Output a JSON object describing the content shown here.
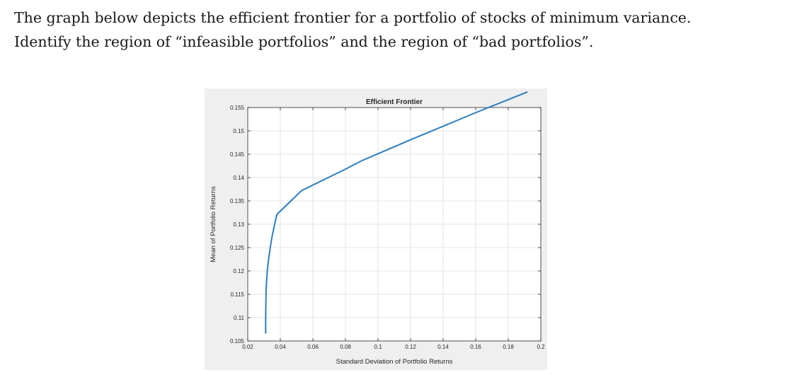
{
  "question": {
    "line1": "The graph below depicts the efficient frontier for a portfolio of stocks of minimum variance.",
    "line2": "Identify the region of “infeasible portfolios” and the region of “bad portfolios”."
  },
  "chart_data": {
    "type": "line",
    "title": "Efficient Frontier",
    "xlabel": "Standard Deviation of Portfolio Returns",
    "ylabel": "Mean of Portfolio Returns",
    "xlim": [
      0.02,
      0.2
    ],
    "ylim": [
      0.105,
      0.155
    ],
    "xticks": [
      0.02,
      0.04,
      0.06,
      0.08,
      0.1,
      0.12,
      0.14,
      0.16,
      0.18,
      0.2
    ],
    "xtick_labels": [
      "0.02",
      "0.04",
      "0.06",
      "0.08",
      "0.1",
      "0.12",
      "0.14",
      "0.16",
      "0.18",
      "0.2"
    ],
    "yticks": [
      0.105,
      0.11,
      0.115,
      0.12,
      0.125,
      0.13,
      0.135,
      0.14,
      0.145,
      0.15,
      0.155
    ],
    "ytick_labels": [
      "0.105",
      "0.11",
      "0.115",
      "0.12",
      "0.125",
      "0.13",
      "0.135",
      "0.14",
      "0.145",
      "0.15",
      "0.155"
    ],
    "grid": true,
    "series": [
      {
        "color": "#2e7ebf",
        "x": [
          0.031,
          0.031,
          0.0312,
          0.0315,
          0.032,
          0.0328,
          0.0338,
          0.035,
          0.0365,
          0.0379,
          0.053,
          0.06,
          0.07,
          0.08,
          0.09,
          0.1,
          0.12,
          0.14,
          0.16,
          0.18,
          0.1915
        ],
        "y": [
          0.1067,
          0.11,
          0.115,
          0.1175,
          0.12,
          0.1225,
          0.125,
          0.1275,
          0.13,
          0.1321,
          0.1372,
          0.1384,
          0.1401,
          0.1418,
          0.1436,
          0.1451,
          0.1481,
          0.151,
          0.1539,
          0.1567,
          0.1583
        ]
      }
    ]
  }
}
